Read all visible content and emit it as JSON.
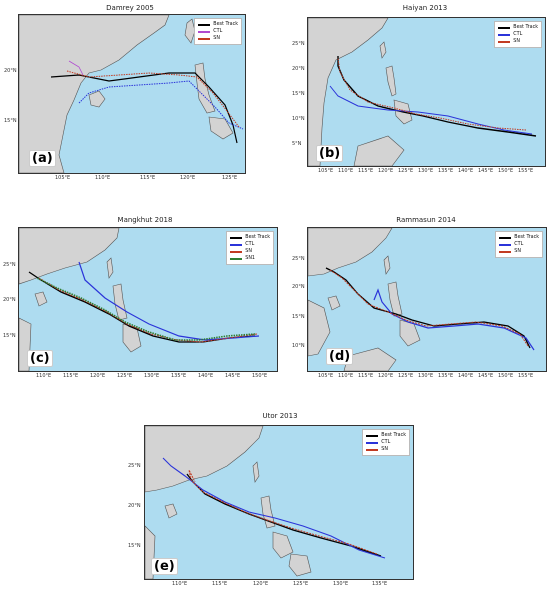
{
  "colors": {
    "ocean": "#aedcf0",
    "land": "#d3d3d3",
    "coast": "#555555",
    "best": "#000000",
    "ctl": "#2b34d9",
    "sn": "#c23b22",
    "sn1": "#2e7d32"
  },
  "panels": [
    {
      "id": "a",
      "title": "Damrey 2005",
      "letter": "(a)",
      "legend": [
        {
          "label": "Best Track",
          "color": "#000000"
        },
        {
          "label": "CTL",
          "color": "#b04bd0"
        },
        {
          "label": "SN",
          "color": "#c23b22"
        }
      ],
      "xticks": [
        "105°E",
        "110°E",
        "115°E",
        "120°E",
        "125°E"
      ],
      "yticks": [
        "20°N",
        "15°N"
      ]
    },
    {
      "id": "b",
      "title": "Haiyan 2013",
      "letter": "(b)",
      "legend": [
        {
          "label": "Best Track",
          "color": "#000000"
        },
        {
          "label": "CTL",
          "color": "#2b34d9"
        },
        {
          "label": "SN",
          "color": "#c23b22"
        }
      ],
      "xticks": [
        "105°E",
        "110°E",
        "115°E",
        "120°E",
        "125°E",
        "130°E",
        "135°E",
        "140°E",
        "145°E",
        "150°E",
        "155°E"
      ],
      "yticks": [
        "25°N",
        "20°N",
        "15°N",
        "10°N",
        "5°N"
      ]
    },
    {
      "id": "c",
      "title": "Mangkhut 2018",
      "letter": "(c)",
      "legend": [
        {
          "label": "Best Track",
          "color": "#000000"
        },
        {
          "label": "CTL",
          "color": "#2b34d9"
        },
        {
          "label": "SN",
          "color": "#c23b22"
        },
        {
          "label": "SN1",
          "color": "#2e7d32"
        }
      ],
      "xticks": [
        "110°E",
        "115°E",
        "120°E",
        "125°E",
        "130°E",
        "135°E",
        "140°E",
        "145°E",
        "150°E"
      ],
      "yticks": [
        "25°N",
        "20°N",
        "15°N"
      ]
    },
    {
      "id": "d",
      "title": "Rammasun 2014",
      "letter": "(d)",
      "legend": [
        {
          "label": "Best Track",
          "color": "#000000"
        },
        {
          "label": "CTL",
          "color": "#2b34d9"
        },
        {
          "label": "SN",
          "color": "#c23b22"
        }
      ],
      "xticks": [
        "105°E",
        "110°E",
        "115°E",
        "120°E",
        "125°E",
        "130°E",
        "135°E",
        "140°E",
        "145°E",
        "150°E",
        "155°E"
      ],
      "yticks": [
        "25°N",
        "20°N",
        "15°N",
        "10°N"
      ]
    },
    {
      "id": "e",
      "title": "Utor 2013",
      "letter": "(e)",
      "legend": [
        {
          "label": "Best Track",
          "color": "#000000"
        },
        {
          "label": "CTL",
          "color": "#2b34d9"
        },
        {
          "label": "SN",
          "color": "#c23b22"
        }
      ],
      "xticks": [
        "110°E",
        "115°E",
        "120°E",
        "125°E",
        "130°E",
        "135°E"
      ],
      "yticks": [
        "25°N",
        "20°N",
        "15°N"
      ]
    }
  ]
}
